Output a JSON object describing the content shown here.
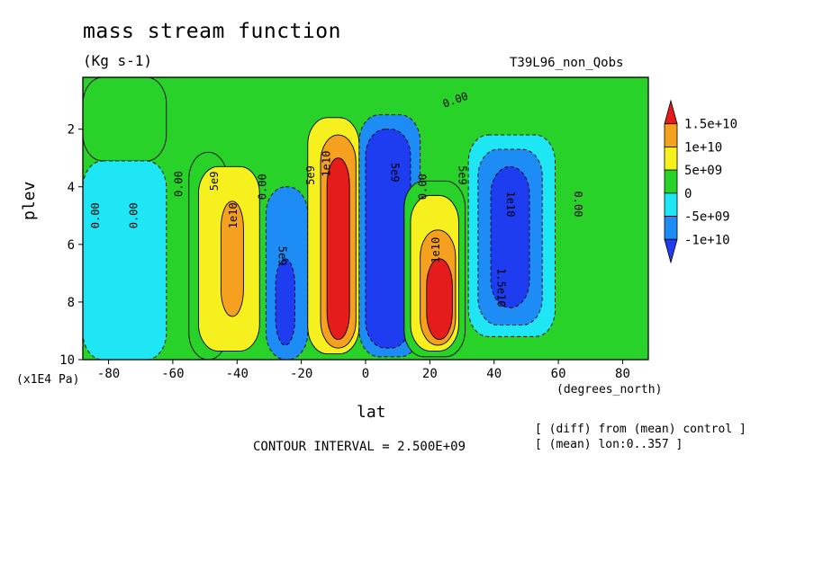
{
  "chart_data": {
    "type": "heatmap",
    "title": "mass stream function",
    "subtitle": "(Kg s-1)",
    "run_label": "T39L96_non_Qobs",
    "xlabel": "lat",
    "ylabel": "plev",
    "x_unit": "(degrees_north)",
    "y_unit": "(x1E4 Pa)",
    "x_ticks": [
      "-80",
      "-60",
      "-40",
      "-20",
      "0",
      "20",
      "40",
      "60",
      "80"
    ],
    "y_ticks": [
      "2",
      "4",
      "6",
      "8",
      "10"
    ],
    "xlim": [
      -88,
      88
    ],
    "ylim": [
      0.2,
      10
    ],
    "y_inverted": true,
    "contour_interval_text": "CONTOUR INTERVAL = 2.500E+09",
    "notes": [
      "[ (diff) from (mean) control ]",
      "[ (mean) lon:0..357 ]"
    ],
    "legend": {
      "levels": [
        "1.5e+10",
        "1e+10",
        "5e+09",
        "0",
        "-5e+09",
        "-1e+10"
      ],
      "colors": [
        "#e61b1b",
        "#f5a01e",
        "#f5f01e",
        "#28d228",
        "#1ee6f5",
        "#1e8cf5",
        "#1e3cf0"
      ]
    },
    "cells": [
      {
        "lat": [
          -88,
          -62
        ],
        "plev": [
          0.2,
          3.1
        ],
        "bin": 3
      },
      {
        "lat": [
          -62,
          -88
        ],
        "plev": [
          3.1,
          10
        ],
        "bin": 4
      },
      {
        "lat": [
          -55,
          -43
        ],
        "plev": [
          2.8,
          10
        ],
        "bin": 3
      },
      {
        "lat": [
          -52,
          -33
        ],
        "plev": [
          3.3,
          9.7
        ],
        "bin": 2
      },
      {
        "lat": [
          -45,
          -38
        ],
        "plev": [
          4.5,
          8.5
        ],
        "bin": 1
      },
      {
        "lat": [
          -31,
          -18
        ],
        "plev": [
          4.0,
          10
        ],
        "bin": 5
      },
      {
        "lat": [
          -28,
          -22
        ],
        "plev": [
          6.5,
          9.5
        ],
        "bin": 6
      },
      {
        "lat": [
          -18,
          -2
        ],
        "plev": [
          1.6,
          9.8
        ],
        "bin": 2
      },
      {
        "lat": [
          -14,
          -3
        ],
        "plev": [
          2.2,
          9.6
        ],
        "bin": 1
      },
      {
        "lat": [
          -12,
          -5
        ],
        "plev": [
          3.0,
          9.3
        ],
        "bin": 0
      },
      {
        "lat": [
          -2,
          17
        ],
        "plev": [
          1.5,
          9.9
        ],
        "bin": 5
      },
      {
        "lat": [
          0,
          14
        ],
        "plev": [
          2.0,
          9.6
        ],
        "bin": 6
      },
      {
        "lat": [
          12,
          31
        ],
        "plev": [
          3.8,
          9.9
        ],
        "bin": 3
      },
      {
        "lat": [
          14,
          29
        ],
        "plev": [
          4.3,
          9.7
        ],
        "bin": 2
      },
      {
        "lat": [
          17,
          28
        ],
        "plev": [
          5.5,
          9.5
        ],
        "bin": 1
      },
      {
        "lat": [
          19,
          27
        ],
        "plev": [
          6.5,
          9.3
        ],
        "bin": 0
      },
      {
        "lat": [
          32,
          59
        ],
        "plev": [
          2.2,
          9.2
        ],
        "bin": 4
      },
      {
        "lat": [
          35,
          55
        ],
        "plev": [
          2.7,
          8.8
        ],
        "bin": 5
      },
      {
        "lat": [
          39,
          51
        ],
        "plev": [
          3.3,
          8.2
        ],
        "bin": 6
      }
    ],
    "contour_labels": [
      {
        "text": "0.00",
        "lat": -84,
        "plev": 5.0,
        "rot": -90
      },
      {
        "text": "0.00",
        "lat": -72,
        "plev": 5.0,
        "rot": -90
      },
      {
        "text": "0.00",
        "lat": -58,
        "plev": 3.9,
        "rot": -90
      },
      {
        "text": "5e9",
        "lat": -47,
        "plev": 3.8,
        "rot": -90
      },
      {
        "text": "1e10",
        "lat": -41,
        "plev": 5.0,
        "rot": -90
      },
      {
        "text": "0.00",
        "lat": -32,
        "plev": 4.0,
        "rot": -90
      },
      {
        "text": "5e9",
        "lat": -26,
        "plev": 6.4,
        "rot": 90
      },
      {
        "text": "5e9",
        "lat": -17,
        "plev": 3.6,
        "rot": -90
      },
      {
        "text": "1e10",
        "lat": -12,
        "plev": 3.2,
        "rot": -90
      },
      {
        "text": "0.00",
        "lat": 28,
        "plev": 1.0,
        "rot": -20
      },
      {
        "text": "5e9",
        "lat": 9,
        "plev": 3.5,
        "rot": 90
      },
      {
        "text": "0.00",
        "lat": 18,
        "plev": 4.0,
        "rot": -90
      },
      {
        "text": "5e9",
        "lat": 30,
        "plev": 3.6,
        "rot": 90
      },
      {
        "text": "1e10",
        "lat": 22,
        "plev": 6.2,
        "rot": -90
      },
      {
        "text": "1e10",
        "lat": 45,
        "plev": 4.6,
        "rot": 90
      },
      {
        "text": "1.5e10",
        "lat": 42,
        "plev": 7.5,
        "rot": 90
      },
      {
        "text": "0.00",
        "lat": 66,
        "plev": 4.6,
        "rot": 90
      }
    ]
  }
}
